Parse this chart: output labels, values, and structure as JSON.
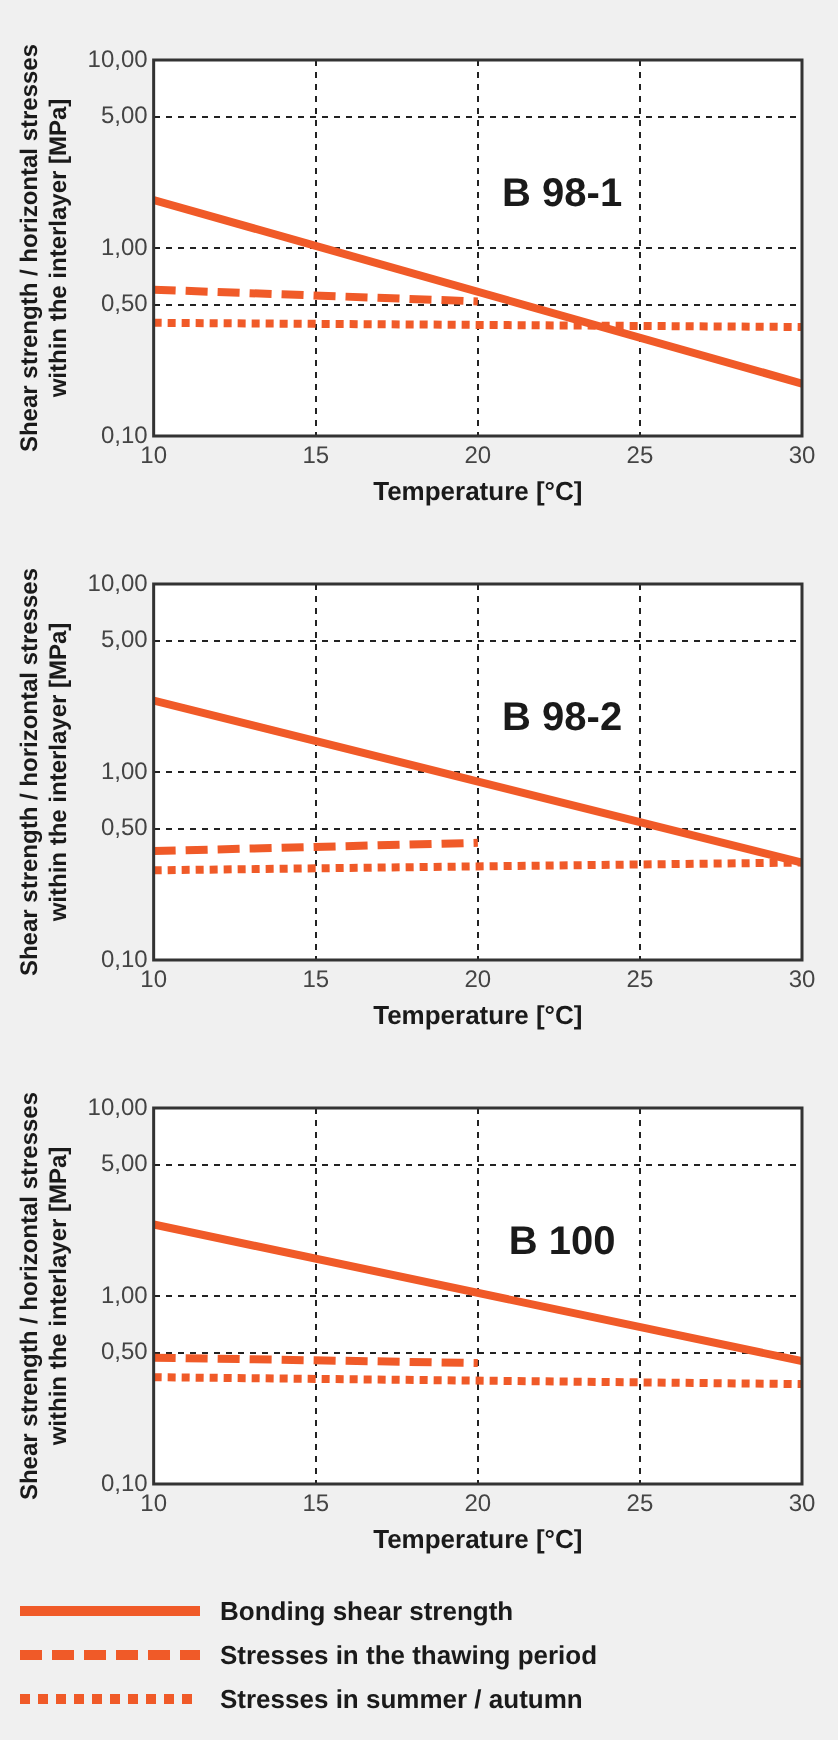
{
  "chart_data": [
    {
      "type": "line",
      "ylabel": "Shear strength / horizontal stresses\nwithin the interlayer [MPa]",
      "xlabel": "Temperature [°C]",
      "annotations": [
        "B 98-1"
      ],
      "log": "y",
      "grid": true,
      "legend": false,
      "xlim": [
        10,
        30
      ],
      "xticks": [
        10,
        15,
        20,
        25,
        30
      ],
      "ylim": [
        0.1,
        10
      ],
      "yticks": [
        {
          "value": 0.1,
          "label": "0,10"
        },
        {
          "value": 0.5,
          "label": "0,50"
        },
        {
          "value": 1,
          "label": "1,00"
        },
        {
          "value": 5,
          "label": "5,00"
        },
        {
          "value": 10,
          "label": "10,00"
        }
      ],
      "series": [
        {
          "color": "#f05a28",
          "line_style": "solid",
          "x": [
            10,
            30
          ],
          "values": [
            1.8,
            0.19
          ]
        },
        {
          "color": "#f05a28",
          "line_style": "dashed",
          "x": [
            10,
            20
          ],
          "values": [
            0.6,
            0.52
          ]
        },
        {
          "color": "#f05a28",
          "line_style": "dotted",
          "x": [
            10,
            30
          ],
          "values": [
            0.4,
            0.38
          ]
        }
      ]
    },
    {
      "type": "line",
      "ylabel": "Shear strength / horizontal stresses\nwithin the interlayer [MPa]",
      "xlabel": "Temperature [°C]",
      "annotations": [
        "B 98-2"
      ],
      "log": "y",
      "grid": true,
      "legend": false,
      "xlim": [
        10,
        30
      ],
      "xticks": [
        10,
        15,
        20,
        25,
        30
      ],
      "ylim": [
        0.1,
        10
      ],
      "yticks": [
        {
          "value": 0.1,
          "label": "0,10"
        },
        {
          "value": 0.5,
          "label": "0,50"
        },
        {
          "value": 1,
          "label": "1,00"
        },
        {
          "value": 5,
          "label": "5,00"
        },
        {
          "value": 10,
          "label": "10,00"
        }
      ],
      "series": [
        {
          "color": "#f05a28",
          "line_style": "solid",
          "x": [
            10,
            30
          ],
          "values": [
            2.4,
            0.33
          ]
        },
        {
          "color": "#f05a28",
          "line_style": "dashed",
          "x": [
            10,
            20
          ],
          "values": [
            0.38,
            0.42
          ]
        },
        {
          "color": "#f05a28",
          "line_style": "dotted",
          "x": [
            10,
            30
          ],
          "values": [
            0.3,
            0.33
          ]
        }
      ]
    },
    {
      "type": "line",
      "ylabel": "Shear strength / horizontal stresses\nwithin the interlayer [MPa]",
      "xlabel": "Temperature [°C]",
      "annotations": [
        "B 100"
      ],
      "log": "y",
      "grid": true,
      "legend": "bottom",
      "xlim": [
        10,
        30
      ],
      "xticks": [
        10,
        15,
        20,
        25,
        30
      ],
      "ylim": [
        0.1,
        10
      ],
      "yticks": [
        {
          "value": 0.1,
          "label": "0,10"
        },
        {
          "value": 0.5,
          "label": "0,50"
        },
        {
          "value": 1,
          "label": "1,00"
        },
        {
          "value": 5,
          "label": "5,00"
        },
        {
          "value": 10,
          "label": "10,00"
        }
      ],
      "series": [
        {
          "name": "Bonding shear strength",
          "color": "#f05a28",
          "line_style": "solid",
          "x": [
            10,
            30
          ],
          "values": [
            2.4,
            0.45
          ]
        },
        {
          "name": "Stresses in the thawing period",
          "color": "#f05a28",
          "line_style": "dashed",
          "x": [
            10,
            20
          ],
          "values": [
            0.47,
            0.44
          ]
        },
        {
          "name": "Stresses in summer / autumn",
          "color": "#f05a28",
          "line_style": "dotted",
          "x": [
            10,
            30
          ],
          "values": [
            0.37,
            0.34
          ]
        }
      ]
    }
  ]
}
